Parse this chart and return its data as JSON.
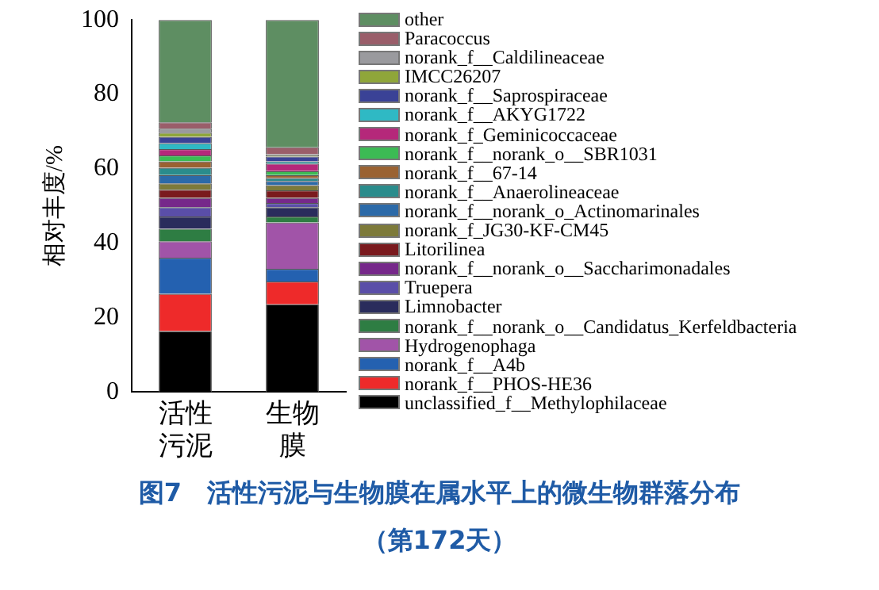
{
  "chart_data": {
    "type": "bar",
    "stacked": true,
    "title": "图7　活性污泥与生物膜在属水平上的微生物群落分布",
    "subtitle": "（第172天）",
    "ylabel": "相对丰度/%",
    "categories": [
      "活性污泥",
      "生物膜"
    ],
    "ylim": [
      0,
      100
    ],
    "yticks": [
      0,
      20,
      40,
      60,
      80,
      100
    ],
    "grid": false,
    "legend": "right",
    "series": [
      {
        "name": "unclassified_f__Methylophilaceae",
        "color": "#000000",
        "values": [
          16.4,
          23.6
        ]
      },
      {
        "name": "norank_f__PHOS-HE36",
        "color": "#ee2a2a",
        "values": [
          10.0,
          6.1
        ]
      },
      {
        "name": "norank_f__A4b",
        "color": "#2461b0",
        "values": [
          9.7,
          3.4
        ]
      },
      {
        "name": "Hydrogenophaga",
        "color": "#a154a8",
        "values": [
          4.4,
          12.5
        ]
      },
      {
        "name": "norank_f__norank_o__Candidatus_Kerfeldbacteria",
        "color": "#2e7d43",
        "values": [
          3.4,
          1.6
        ]
      },
      {
        "name": "Limnobacter",
        "color": "#2a2c5c",
        "values": [
          3.3,
          2.5
        ]
      },
      {
        "name": "Truepera",
        "color": "#5a4ea8",
        "values": [
          2.5,
          1.1
        ]
      },
      {
        "name": "norank_f__norank_o__Saccharimonadales",
        "color": "#76288a",
        "values": [
          2.5,
          1.4
        ]
      },
      {
        "name": "Litorilinea",
        "color": "#7a1a1e",
        "values": [
          2.2,
          2.0
        ]
      },
      {
        "name": "norank_f_JG30-KF-CM45",
        "color": "#7d7a3a",
        "values": [
          1.7,
          1.4
        ]
      },
      {
        "name": "norank_f__norank_o_Actinomarinales",
        "color": "#2c6aa8",
        "values": [
          2.2,
          1.1
        ]
      },
      {
        "name": "norank_f__Anaerolineaceae",
        "color": "#2a8c8c",
        "values": [
          2.0,
          0.8
        ]
      },
      {
        "name": "norank_f__67-14",
        "color": "#9a6232",
        "values": [
          1.7,
          0.8
        ]
      },
      {
        "name": "norank_f__norank_o__SBR1031",
        "color": "#3cbb54",
        "values": [
          1.6,
          1.1
        ]
      },
      {
        "name": "norank_f_Geminicoccaceae",
        "color": "#b5287a",
        "values": [
          1.7,
          2.0
        ]
      },
      {
        "name": "norank_f__AKYG1722",
        "color": "#2fb9c4",
        "values": [
          1.6,
          0.6
        ]
      },
      {
        "name": "norank_f__Saprospiraceae",
        "color": "#3a4296",
        "values": [
          1.7,
          1.3
        ]
      },
      {
        "name": "IMCC26207",
        "color": "#8fa63a",
        "values": [
          1.1,
          0.3
        ]
      },
      {
        "name": "norank_f__Caldilineaceae",
        "color": "#9a9a9e",
        "values": [
          1.1,
          0.3
        ]
      },
      {
        "name": "Paracoccus",
        "color": "#9a5e6a",
        "values": [
          1.7,
          1.9
        ]
      },
      {
        "name": "other",
        "color": "#5e8e62",
        "values": [
          27.5,
          34.2
        ]
      }
    ]
  }
}
